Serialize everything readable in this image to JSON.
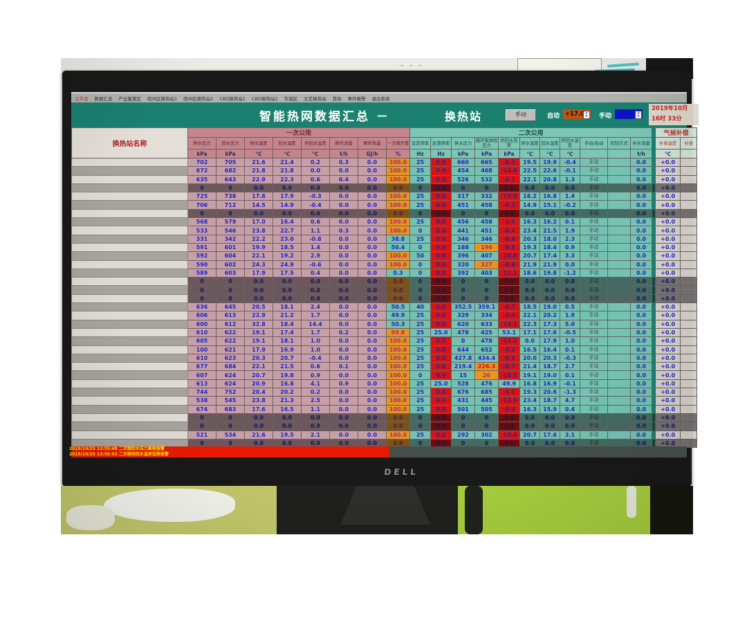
{
  "menu": {
    "items": [
      "主界面",
      "数据汇总",
      "产业集聚区",
      "阳州区换热站1",
      "阳州区换热站2",
      "CBD换热站1",
      "CBD换热站2",
      "东城区",
      "文定换热站",
      "其他",
      "事件报警",
      "退出系统"
    ]
  },
  "titlebar": {
    "title": "智能热网数据汇总 －",
    "station": "换热站",
    "manual_button": "手动",
    "auto_label": "自动",
    "auto_value": "+17.0",
    "manual_label": "手动",
    "manual_value": "",
    "date_line1": "2019年10月",
    "date_line2": "16时 33分"
  },
  "colors": {
    "titlebar_green": "#1b8070",
    "primary_pink": "#c79fa7",
    "secondary_teal": "#72c3b1",
    "alarm_cell_red": "#dc1212",
    "warn_cell_orange": "#e8951e",
    "value_blue": "#2424c4",
    "alarm_bar_red": "#e81a00",
    "alarm_text_yellow": "#ffe400",
    "auto_box_orange": "#bc5410",
    "manual_box_blue": "#0a14c4"
  },
  "table": {
    "name_header": "换热站名称",
    "groups": [
      {
        "label": "一次公用",
        "span": 8
      },
      {
        "label": "二次公用",
        "span": 11
      },
      {
        "label": "气候补偿",
        "span": 2
      }
    ],
    "columns": [
      {
        "name": "供水压力",
        "unit": "kPa",
        "grp": "p"
      },
      {
        "name": "回水压力",
        "unit": "kPa",
        "grp": "p"
      },
      {
        "name": "供水温度",
        "unit": "℃",
        "grp": "p"
      },
      {
        "name": "回水温度",
        "unit": "℃",
        "grp": "p"
      },
      {
        "name": "供回水温差",
        "unit": "℃",
        "grp": "p"
      },
      {
        "name": "瞬时流量",
        "unit": "t/h",
        "grp": "p"
      },
      {
        "name": "瞬时热量",
        "unit": "GJ/h",
        "grp": "p"
      },
      {
        "name": "一次阀开度",
        "unit": "%",
        "grp": "p"
      },
      {
        "name": "设定频率",
        "unit": "Hz",
        "grp": "t"
      },
      {
        "name": "反馈频率",
        "unit": "Hz",
        "grp": "t"
      },
      {
        "name": "供水压力",
        "unit": "kPa",
        "grp": "t"
      },
      {
        "name": "循环泵扬程压力",
        "unit": "kPa",
        "grp": "t"
      },
      {
        "name": "供回水压差",
        "unit": "kPa",
        "grp": "t"
      },
      {
        "name": "供水温度",
        "unit": "℃",
        "grp": "t"
      },
      {
        "name": "回水温度",
        "unit": "℃",
        "grp": "t"
      },
      {
        "name": "供回水温差",
        "unit": "℃",
        "grp": "t"
      },
      {
        "name": "手动/自动",
        "unit": "",
        "grp": "t"
      },
      {
        "name": "控制方式",
        "unit": "",
        "grp": "t"
      },
      {
        "name": "补水流量",
        "unit": "t/h",
        "grp": "t"
      },
      {
        "name": "补偿温度",
        "unit": "℃",
        "grp": "c"
      },
      {
        "name": "补偿",
        "unit": "",
        "grp": "c"
      }
    ],
    "col_defaults": [
      "pink",
      "pink",
      "pink",
      "pink",
      "pink",
      "pink",
      "pink",
      "orange",
      "teal",
      "red",
      "teal",
      "teal",
      "red",
      "teal",
      "teal",
      "teal",
      "teal",
      "teal",
      "teal",
      "gray",
      "gray"
    ],
    "offline_cells": [
      "0",
      "0",
      "0.0",
      "0.0",
      "0.0",
      "0.0",
      "0.0",
      "0.0",
      "0",
      "0.0",
      "0",
      "0",
      "0.0",
      "0.0",
      "0.0",
      "0.0",
      "手动",
      "",
      "0.0",
      "+0.0",
      ""
    ],
    "rows": [
      {
        "name": "",
        "c": [
          "702",
          "705",
          "21.6",
          "21.4",
          "0.2",
          "0.3",
          "0.0",
          "100.0",
          "25",
          "0.0",
          "660",
          "665",
          "-4.2",
          "19.5",
          "19.9",
          "-0.4",
          "手动",
          "",
          "0.0",
          "+0.0",
          ""
        ]
      },
      {
        "name": "",
        "c": [
          "672",
          "682",
          "21.8",
          "21.8",
          "0.0",
          "0.0",
          "0.0",
          "100.0",
          "25",
          "0.0",
          "454",
          "468",
          "-14.6",
          "22.5",
          "22.6",
          "-0.1",
          "手动",
          "",
          "0.0",
          "+0.0",
          ""
        ]
      },
      {
        "name": "",
        "c": [
          "635",
          "643",
          "22.9",
          "22.3",
          "0.6",
          "0.4",
          "0.0",
          "100.0",
          "25",
          "0.0",
          "526",
          "532",
          "-8.1",
          "22.1",
          "20.8",
          "1.3",
          "手动",
          "",
          "0.0",
          "+0.0",
          ""
        ]
      },
      {
        "name": "",
        "offline": true
      },
      {
        "name": "",
        "c": [
          "725",
          "738",
          "17.6",
          "17.9",
          "-0.3",
          "0.0",
          "0.0",
          "100.0",
          "25",
          "0.0",
          "317",
          "332",
          "-15.5",
          "18.2",
          "16.8",
          "1.4",
          "手动",
          "",
          "0.0",
          "+0.0",
          ""
        ]
      },
      {
        "name": "",
        "c": [
          "706",
          "712",
          "14.5",
          "14.9",
          "-0.4",
          "0.0",
          "0.0",
          "100.0",
          "25",
          "0.0",
          "451",
          "458",
          "-4.3",
          "14.9",
          "15.1",
          "-0.2",
          "手动",
          "",
          "0.0",
          "+0.0",
          ""
        ]
      },
      {
        "name": "",
        "offline": true
      },
      {
        "name": "",
        "c": [
          "568",
          "579",
          "17.0",
          "16.4",
          "0.6",
          "0.0",
          "0.0",
          "100.0",
          "25",
          "0.0",
          "456",
          "458",
          "-1.4",
          "16.3",
          "16.2",
          "0.1",
          "手动",
          "",
          "0.0",
          "+0.0",
          ""
        ]
      },
      {
        "name": "",
        "c": [
          "533",
          "546",
          "23.8",
          "22.7",
          "1.1",
          "0.3",
          "0.0",
          "100.0",
          "0",
          "0.0",
          "441",
          "451",
          "-9.4",
          "23.4",
          "21.5",
          "1.9",
          "手动",
          "",
          "0.0",
          "+0.0",
          ""
        ]
      },
      {
        "name": "",
        "c": [
          "331",
          "342",
          "22.2",
          "23.0",
          "-0.8",
          "0.0",
          "0.0",
          "38.8",
          "25",
          "0.0",
          "346",
          "346",
          "-0.6",
          "20.3",
          "18.0",
          "2.3",
          "手动",
          "",
          "0.0",
          "+0.0",
          ""
        ],
        "hl": {
          "7": "teal"
        }
      },
      {
        "name": "",
        "c": [
          "591",
          "601",
          "19.9",
          "18.5",
          "1.4",
          "0.0",
          "0.0",
          "50.4",
          "0",
          "0.0",
          "188",
          "196",
          "-8.6",
          "19.3",
          "18.4",
          "0.9",
          "手动",
          "",
          "0.0",
          "+0.0",
          ""
        ],
        "hl": {
          "7": "teal",
          "11": "orange"
        }
      },
      {
        "name": "",
        "c": [
          "592",
          "604",
          "22.1",
          "19.2",
          "2.9",
          "0.0",
          "0.0",
          "100.0",
          "50",
          "0.0",
          "396",
          "407",
          "-10.8",
          "20.7",
          "17.4",
          "3.3",
          "手动",
          "",
          "0.0",
          "+0.0",
          ""
        ]
      },
      {
        "name": "",
        "c": [
          "590",
          "602",
          "24.3",
          "24.9",
          "-0.6",
          "0.0",
          "0.0",
          "100.0",
          "0",
          "0.0",
          "320",
          "327",
          "-6.8",
          "21.9",
          "21.9",
          "0.0",
          "手动",
          "",
          "0.0",
          "+0.0",
          ""
        ],
        "hl": {
          "11": "orange"
        }
      },
      {
        "name": "",
        "c": [
          "589",
          "603",
          "17.9",
          "17.5",
          "0.4",
          "0.0",
          "0.0",
          "0.3",
          "0",
          "0.0",
          "392",
          "403",
          "-11.1",
          "18.6",
          "19.8",
          "-1.2",
          "手动",
          "",
          "0.0",
          "+0.0",
          ""
        ],
        "hl": {
          "7": "teal"
        }
      },
      {
        "name": "",
        "offline": true
      },
      {
        "name": "",
        "offline": true
      },
      {
        "name": "",
        "offline": true
      },
      {
        "name": "",
        "c": [
          "636",
          "645",
          "20.5",
          "18.1",
          "2.4",
          "0.0",
          "0.0",
          "50.5",
          "40",
          "0.0",
          "352.5",
          "359.1",
          "-4.7",
          "18.5",
          "19.0",
          "0.5",
          "手动",
          "",
          "0.0",
          "+0.0",
          ""
        ],
        "hl": {
          "7": "teal"
        }
      },
      {
        "name": "",
        "c": [
          "606",
          "613",
          "22.9",
          "21.2",
          "1.7",
          "0.0",
          "0.0",
          "49.9",
          "25",
          "0.0",
          "329",
          "334",
          "-4.4",
          "22.1",
          "20.2",
          "1.9",
          "手动",
          "",
          "0.0",
          "+0.0",
          ""
        ],
        "hl": {
          "7": "teal"
        }
      },
      {
        "name": "",
        "c": [
          "600",
          "612",
          "32.8",
          "18.4",
          "14.4",
          "0.0",
          "0.0",
          "50.3",
          "25",
          "0.0",
          "620",
          "633",
          "-13.1",
          "22.3",
          "17.3",
          "5.0",
          "手动",
          "",
          "0.0",
          "+0.0",
          ""
        ],
        "hl": {
          "7": "teal"
        }
      },
      {
        "name": "",
        "c": [
          "610",
          "622",
          "19.1",
          "17.4",
          "1.7",
          "0.2",
          "0.0",
          "99.8",
          "25",
          "25.0",
          "478",
          "425",
          "53.1",
          "17.1",
          "17.6",
          "-0.5",
          "手动",
          "",
          "0.0",
          "+0.0",
          ""
        ],
        "hl": {
          "9": "teal",
          "12": "teal"
        }
      },
      {
        "name": "",
        "c": [
          "605",
          "622",
          "19.1",
          "18.1",
          "1.0",
          "0.0",
          "0.0",
          "100.0",
          "25",
          "0.0",
          "0",
          "478",
          "-13.2",
          "0.0",
          "17.9",
          "1.0",
          "手动",
          "",
          "0.0",
          "+0.0",
          ""
        ]
      },
      {
        "name": "",
        "c": [
          "100",
          "621",
          "17.9",
          "16.9",
          "1.0",
          "0.0",
          "0.0",
          "100.0",
          "25",
          "0.0",
          "644",
          "652",
          "-4.2",
          "16.5",
          "16.4",
          "0.1",
          "手动",
          "",
          "0.0",
          "+0.0",
          ""
        ]
      },
      {
        "name": "",
        "c": [
          "610",
          "623",
          "20.3",
          "20.7",
          "-0.4",
          "0.0",
          "0.0",
          "100.0",
          "25",
          "0.0",
          "427.8",
          "434.4",
          "-6.5",
          "20.0",
          "20.3",
          "-0.3",
          "手动",
          "",
          "0.0",
          "+0.0",
          ""
        ]
      },
      {
        "name": "",
        "c": [
          "677",
          "684",
          "22.1",
          "21.5",
          "0.6",
          "0.1",
          "0.0",
          "100.0",
          "25",
          "0.0",
          "219.4",
          "226.3",
          "-6.7",
          "21.4",
          "18.7",
          "2.7",
          "手动",
          "",
          "0.0",
          "+0.0",
          ""
        ],
        "hl": {
          "11": "orangeRed"
        }
      },
      {
        "name": "",
        "c": [
          "607",
          "624",
          "20.7",
          "19.8",
          "0.9",
          "0.0",
          "0.0",
          "100.0",
          "0",
          "0.0",
          "15",
          "26",
          "-10.5",
          "19.1",
          "19.0",
          "0.1",
          "手动",
          "",
          "0.0",
          "+0.0",
          ""
        ],
        "hl": {
          "11": "orange"
        }
      },
      {
        "name": "",
        "c": [
          "613",
          "624",
          "20.9",
          "16.8",
          "4.1",
          "0.9",
          "0.0",
          "100.0",
          "25",
          "25.0",
          "528",
          "476",
          "49.9",
          "16.8",
          "16.9",
          "-0.1",
          "手动",
          "",
          "0.0",
          "+0.0",
          ""
        ],
        "hl": {
          "9": "teal",
          "12": "teal"
        }
      },
      {
        "name": "",
        "c": [
          "744",
          "752",
          "20.4",
          "20.2",
          "0.2",
          "0.0",
          "0.0",
          "100.0",
          "25",
          "0.0",
          "676",
          "685",
          "-9.1",
          "19.3",
          "20.6",
          "-1.3",
          "手动",
          "",
          "0.0",
          "+0.0",
          ""
        ]
      },
      {
        "name": "",
        "c": [
          "538",
          "545",
          "23.8",
          "21.3",
          "2.5",
          "0.0",
          "0.0",
          "100.0",
          "25",
          "0.0",
          "431",
          "445",
          "-13.9",
          "23.4",
          "18.7",
          "4.7",
          "手动",
          "",
          "0.0",
          "+0.0",
          ""
        ]
      },
      {
        "name": "",
        "c": [
          "674",
          "683",
          "17.6",
          "16.5",
          "1.1",
          "0.0",
          "0.0",
          "100.0",
          "25",
          "0.0",
          "501",
          "505",
          "-9.4",
          "16.3",
          "15.9",
          "0.4",
          "手动",
          "",
          "0.0",
          "+0.0",
          ""
        ]
      },
      {
        "name": "",
        "offline": true
      },
      {
        "name": "",
        "offline": true
      },
      {
        "name": "",
        "c": [
          "521",
          "534",
          "21.6",
          "19.5",
          "2.1",
          "0.0",
          "0.0",
          "100.0",
          "25",
          "0.0",
          "292",
          "302",
          "-10.4",
          "20.7",
          "17.6",
          "3.1",
          "手动",
          "",
          "0.0",
          "+0.0",
          ""
        ]
      },
      {
        "name": "",
        "offline": true
      }
    ]
  },
  "alarms": [
    "2019/10/25 13:55:48 二次侧回水压力高限报警",
    "2019/10/25 13:55:53 二次侧供回水温差低限报警"
  ],
  "monitor": {
    "brand": "DELL"
  }
}
